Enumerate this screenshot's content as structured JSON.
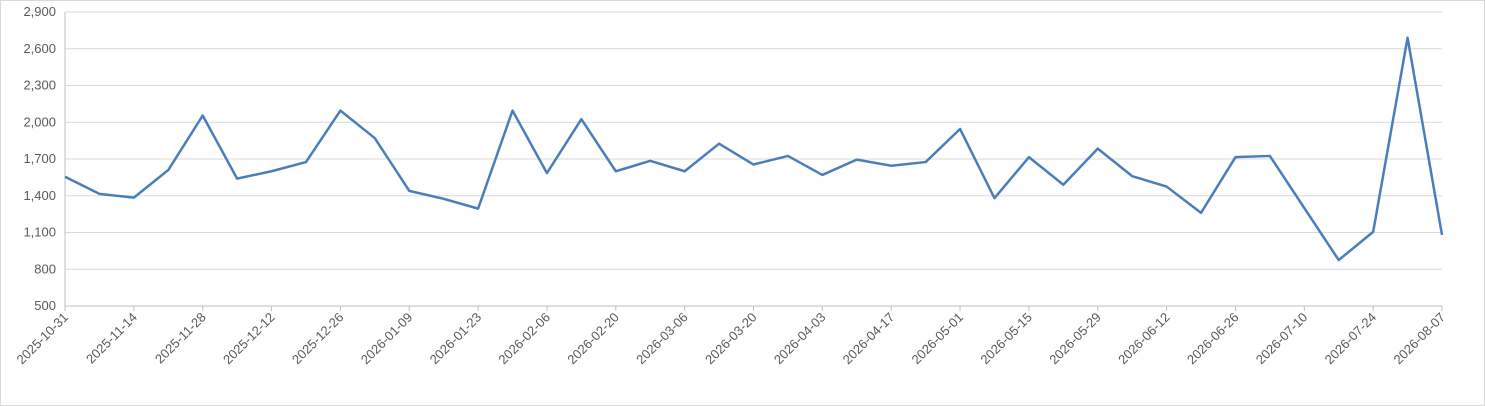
{
  "chart_data": {
    "type": "line",
    "categories": [
      "2025-10-31",
      null,
      "2025-11-14",
      null,
      "2025-11-28",
      null,
      "2025-12-12",
      null,
      "2025-12-26",
      null,
      "2026-01-09",
      null,
      "2026-01-23",
      null,
      "2026-02-06",
      null,
      "2026-02-20",
      null,
      "2026-03-06",
      null,
      "2026-03-20",
      null,
      "2026-04-03",
      null,
      "2026-04-17",
      null,
      "2026-05-01",
      null,
      "2026-05-15",
      null,
      "2026-05-29",
      null,
      "2026-06-12",
      null,
      "2026-06-26",
      null,
      "2026-07-10",
      null,
      "2026-07-24",
      null,
      "2026-08-07"
    ],
    "values": [
      1555,
      1415,
      1385,
      1610,
      2055,
      1540,
      1600,
      1675,
      2095,
      1870,
      1440,
      1375,
      1295,
      2095,
      1585,
      2025,
      1600,
      1685,
      1600,
      1825,
      1655,
      1725,
      1570,
      1695,
      1645,
      1675,
      1945,
      1380,
      1715,
      1490,
      1785,
      1560,
      1475,
      1260,
      1715,
      1725,
      1300,
      875,
      1105,
      2690,
      1080
    ],
    "color": "#4a7ebb",
    "ylim": [
      500,
      2900
    ],
    "yticks": [
      500,
      800,
      {
        "value": 1100,
        "label": "1,100"
      },
      {
        "value": 1400,
        "label": "1,400"
      },
      {
        "value": 1700,
        "label": "1,700"
      },
      {
        "value": 2000,
        "label": "2,000"
      },
      {
        "value": 2300,
        "label": "2,300"
      },
      {
        "value": 2600,
        "label": "2,600"
      },
      {
        "value": 2900,
        "label": "2,900"
      }
    ],
    "grid": true
  }
}
